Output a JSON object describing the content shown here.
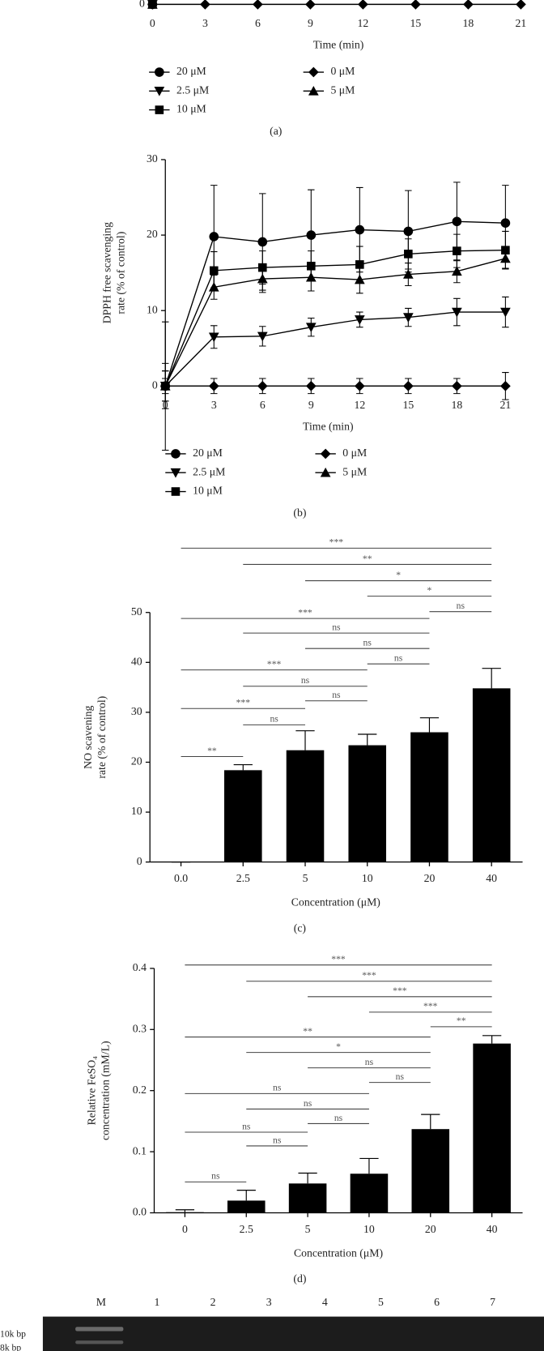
{
  "chart_data": [
    {
      "type": "line",
      "caption": "(a)",
      "xlabel": "Time (min)",
      "x": [
        0,
        3,
        6,
        9,
        12,
        15,
        18,
        21
      ],
      "xlim": [
        0,
        21
      ],
      "xticks": [
        0,
        3,
        6,
        9,
        12,
        15,
        18,
        21
      ],
      "ylim": [
        0,
        30
      ],
      "yticks": [
        0
      ],
      "series": [
        {
          "name": "20 μM",
          "marker": "circle",
          "color": "#000000",
          "values": [
            0,
            null,
            null,
            null,
            null,
            null,
            null,
            null
          ]
        },
        {
          "name": "2.5 μM",
          "marker": "triangle-down",
          "color": "#000000",
          "values": [
            0,
            null,
            null,
            null,
            null,
            null,
            null,
            null
          ]
        },
        {
          "name": "10 μM",
          "marker": "square",
          "color": "#000000",
          "values": [
            0,
            null,
            null,
            null,
            null,
            null,
            null,
            null
          ]
        },
        {
          "name": "0 μM",
          "marker": "diamond",
          "color": "#000000",
          "values": [
            0,
            0,
            0,
            0,
            0,
            0,
            0,
            0
          ]
        },
        {
          "name": "5 μM",
          "marker": "triangle-up",
          "color": "#000000",
          "values": [
            0,
            null,
            null,
            null,
            null,
            null,
            null,
            null
          ]
        }
      ]
    },
    {
      "type": "line",
      "caption": "(b)",
      "xlabel": "Time (min)",
      "ylabel": [
        "DPPH free scavenging",
        "rate (% of control)"
      ],
      "x": [
        0,
        3,
        6,
        9,
        12,
        15,
        18,
        21
      ],
      "xlim": [
        0,
        21
      ],
      "xticks": [
        0,
        3,
        6,
        9,
        12,
        15,
        18,
        21
      ],
      "ylim": [
        0,
        30
      ],
      "yticks": [
        0,
        10,
        20,
        30
      ],
      "series": [
        {
          "name": "20 μM",
          "marker": "circle",
          "color": "#000000",
          "values": [
            0,
            19.8,
            19.1,
            20.0,
            20.7,
            20.5,
            21.8,
            21.6
          ],
          "errors": [
            8.5,
            6.8,
            6.4,
            6.0,
            5.6,
            5.4,
            5.2,
            5.0
          ]
        },
        {
          "name": "2.5 μM",
          "marker": "triangle-down",
          "color": "#000000",
          "values": [
            0,
            6.5,
            6.6,
            7.8,
            8.8,
            9.1,
            9.8,
            9.8
          ],
          "errors": [
            2.0,
            1.5,
            1.3,
            1.2,
            1.0,
            1.2,
            1.8,
            2.0
          ]
        },
        {
          "name": "10 μM",
          "marker": "square",
          "color": "#000000",
          "values": [
            0,
            15.3,
            15.7,
            15.9,
            16.1,
            17.5,
            17.9,
            18.0
          ],
          "errors": [
            3.0,
            2.5,
            2.2,
            2.0,
            2.4,
            2.0,
            2.2,
            2.5
          ]
        },
        {
          "name": "0 μM",
          "marker": "diamond",
          "color": "#000000",
          "values": [
            0,
            0,
            0,
            0,
            0,
            0,
            0,
            0
          ],
          "errors": [
            1.0,
            1.0,
            1.0,
            1.0,
            1.0,
            1.0,
            1.0,
            1.8
          ]
        },
        {
          "name": "5 μM",
          "marker": "triangle-up",
          "color": "#000000",
          "values": [
            0,
            13.1,
            14.2,
            14.4,
            14.1,
            14.8,
            15.2,
            16.9
          ],
          "errors": [
            2.0,
            1.6,
            1.8,
            1.8,
            1.8,
            1.5,
            1.5,
            1.3
          ]
        }
      ]
    },
    {
      "type": "bar",
      "caption": "(c)",
      "xlabel": "Concentration (μM)",
      "ylabel": [
        "NO scavening",
        "rate (% of control)"
      ],
      "categories": [
        "0.0",
        "2.5",
        "5",
        "10",
        "20",
        "40"
      ],
      "values": [
        0,
        18.4,
        22.4,
        23.4,
        26.0,
        34.8
      ],
      "errors": [
        0,
        1.1,
        3.9,
        2.2,
        2.9,
        4.0
      ],
      "color": "#000000",
      "ylim": [
        0,
        50
      ],
      "yticks": [
        0,
        10,
        20,
        30,
        40,
        50
      ],
      "comparisons": [
        {
          "from": 0,
          "to": 5,
          "label": "***"
        },
        {
          "from": 1,
          "to": 5,
          "label": "**"
        },
        {
          "from": 2,
          "to": 5,
          "label": "*"
        },
        {
          "from": 3,
          "to": 5,
          "label": "*"
        },
        {
          "from": 4,
          "to": 5,
          "label": "ns"
        },
        {
          "from": 0,
          "to": 4,
          "label": "***"
        },
        {
          "from": 1,
          "to": 4,
          "label": "ns"
        },
        {
          "from": 2,
          "to": 4,
          "label": "ns"
        },
        {
          "from": 3,
          "to": 4,
          "label": "ns"
        },
        {
          "from": 0,
          "to": 3,
          "label": "***"
        },
        {
          "from": 1,
          "to": 3,
          "label": "ns"
        },
        {
          "from": 2,
          "to": 3,
          "label": "ns"
        },
        {
          "from": 0,
          "to": 2,
          "label": "***"
        },
        {
          "from": 1,
          "to": 2,
          "label": "ns"
        },
        {
          "from": 0,
          "to": 1,
          "label": "**"
        }
      ]
    },
    {
      "type": "bar",
      "caption": "(d)",
      "xlabel": "Concentration (μM)",
      "ylabel": [
        "Relative FeSO₄",
        "concentration (mM/L)"
      ],
      "categories": [
        "0",
        "2.5",
        "5",
        "10",
        "20",
        "40"
      ],
      "values": [
        0.001,
        0.02,
        0.048,
        0.064,
        0.137,
        0.277
      ],
      "errors": [
        0.004,
        0.017,
        0.017,
        0.025,
        0.024,
        0.013
      ],
      "color": "#000000",
      "ylim": [
        0,
        0.4
      ],
      "yticks": [
        {
          "value": 0,
          "label": "0.0"
        },
        0.1,
        0.2,
        0.3,
        0.4
      ],
      "comparisons": [
        {
          "from": 0,
          "to": 5,
          "label": "***"
        },
        {
          "from": 1,
          "to": 5,
          "label": "***"
        },
        {
          "from": 2,
          "to": 5,
          "label": "***"
        },
        {
          "from": 3,
          "to": 5,
          "label": "***"
        },
        {
          "from": 4,
          "to": 5,
          "label": "**"
        },
        {
          "from": 0,
          "to": 4,
          "label": "**"
        },
        {
          "from": 1,
          "to": 4,
          "label": "*"
        },
        {
          "from": 2,
          "to": 4,
          "label": "ns"
        },
        {
          "from": 3,
          "to": 4,
          "label": "ns"
        },
        {
          "from": 0,
          "to": 3,
          "label": "ns"
        },
        {
          "from": 1,
          "to": 3,
          "label": "ns"
        },
        {
          "from": 2,
          "to": 3,
          "label": "ns"
        },
        {
          "from": 0,
          "to": 2,
          "label": "ns"
        },
        {
          "from": 1,
          "to": 2,
          "label": "ns"
        },
        {
          "from": 0,
          "to": 1,
          "label": "ns"
        }
      ]
    }
  ],
  "gel": {
    "lanes": [
      "M",
      "1",
      "2",
      "3",
      "4",
      "5",
      "6",
      "7"
    ],
    "size_labels": [
      "10k bp",
      "8k bp"
    ]
  }
}
